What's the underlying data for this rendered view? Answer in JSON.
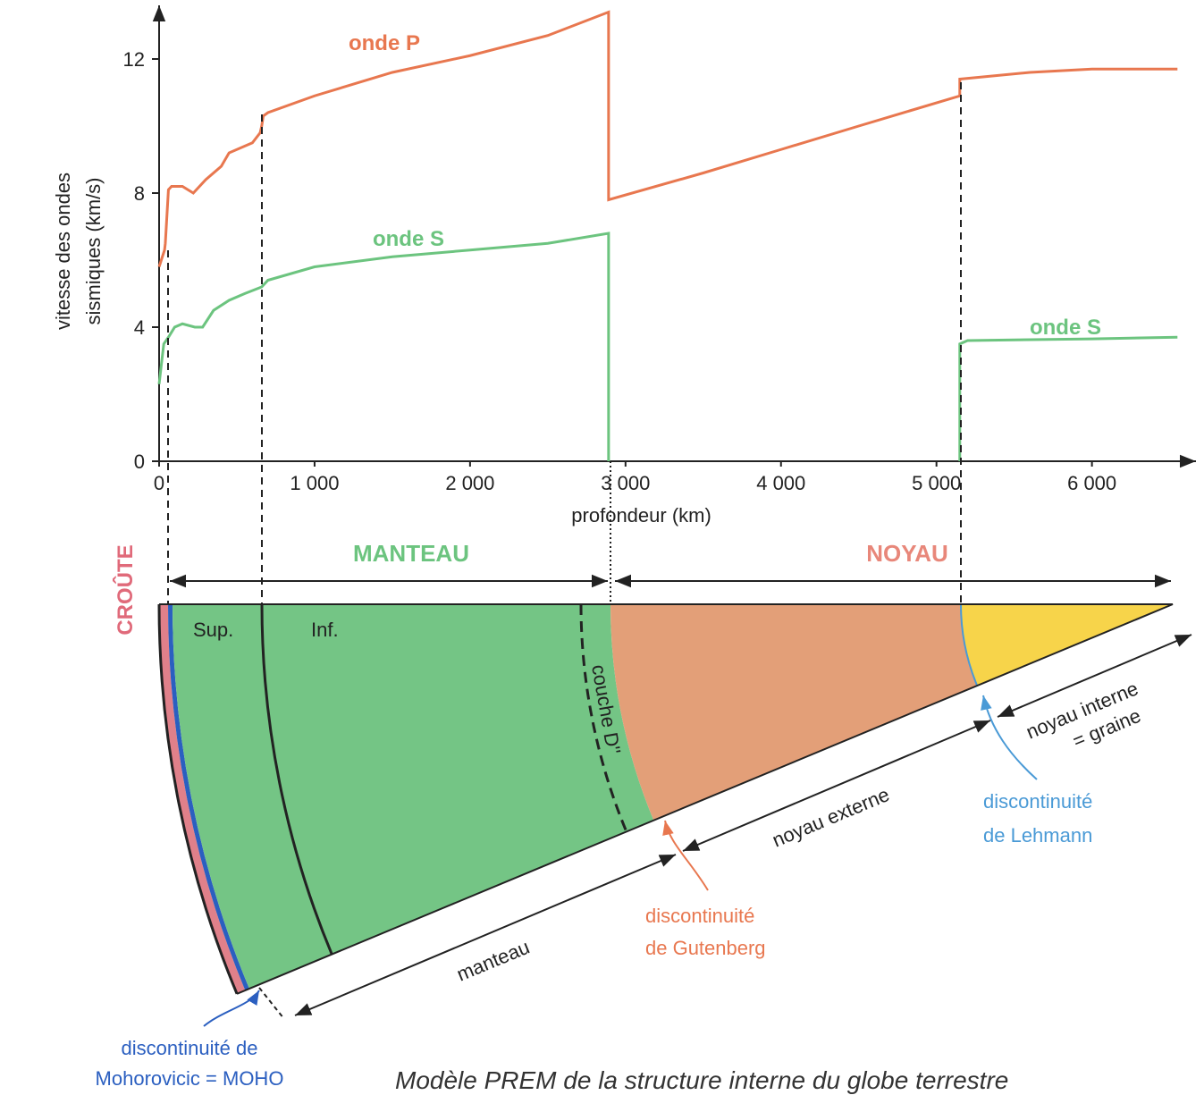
{
  "chart_data": {
    "type": "line",
    "xlabel": "profondeur (km)",
    "ylabel": [
      "vitesse des ondes",
      "sismiques (km/s)"
    ],
    "xlim": [
      0,
      6600
    ],
    "ylim": [
      0,
      13.6
    ],
    "xticks": [
      0,
      {
        "value": 1000,
        "label": "1 000"
      },
      {
        "value": 2000,
        "label": "2 000"
      },
      {
        "value": 3000,
        "label": "3 000"
      },
      {
        "value": 4000,
        "label": "4 000"
      },
      {
        "value": 5000,
        "label": "5 000"
      },
      {
        "value": 6000,
        "label": "6 000"
      }
    ],
    "yticks": [
      0,
      4,
      8,
      12
    ],
    "series": [
      {
        "name": "onde P",
        "color": "#e8774f",
        "x": [
          0,
          35,
          40,
          60,
          80,
          150,
          220,
          300,
          400,
          450,
          550,
          600,
          650,
          660,
          670,
          700,
          1000,
          1500,
          2000,
          2500,
          2891,
          2891,
          3500,
          4000,
          4500,
          5150,
          5150,
          5600,
          6000,
          6550
        ],
        "values": [
          5.8,
          6.3,
          6.5,
          8.1,
          8.2,
          8.2,
          8.0,
          8.4,
          8.8,
          9.2,
          9.4,
          9.5,
          9.8,
          10.0,
          10.3,
          10.4,
          10.9,
          11.6,
          12.1,
          12.7,
          13.4,
          7.8,
          8.6,
          9.3,
          10.0,
          10.9,
          11.4,
          11.6,
          11.7,
          11.7
        ]
      },
      {
        "name": "onde S",
        "color": "#6cc47f",
        "x": [
          0,
          30,
          60,
          100,
          150,
          230,
          280,
          350,
          450,
          550,
          660,
          700,
          1000,
          1500,
          2000,
          2500,
          2891,
          2891,
          4000,
          5150,
          5150,
          5200,
          6000,
          6550
        ],
        "values": [
          2.3,
          3.5,
          3.7,
          4.0,
          4.1,
          4.0,
          4.0,
          4.5,
          4.8,
          5.0,
          5.2,
          5.4,
          5.8,
          6.1,
          6.3,
          6.5,
          6.8,
          0,
          null,
          0,
          3.5,
          3.6,
          3.65,
          3.7
        ]
      }
    ],
    "annotations": [
      "onde S"
    ]
  },
  "diagram": {
    "crust": "CROÛTE",
    "mantle": "MANTEAU",
    "core": "NOYAU",
    "upper": "Sup.",
    "lower": "Inf.",
    "d_layer": "couche D''",
    "mantle_dim": "manteau",
    "outer_core": "noyau externe",
    "inner_core": [
      "noyau interne",
      "= graine"
    ],
    "lehmann": [
      "discontinuité",
      "de Lehmann"
    ],
    "gutenberg": [
      "discontinuité",
      "de Gutenberg"
    ],
    "moho": [
      "discontinuité de",
      "Mohorovicic = MOHO"
    ],
    "caption": "Modèle PREM de la structure interne du globe terrestre"
  }
}
